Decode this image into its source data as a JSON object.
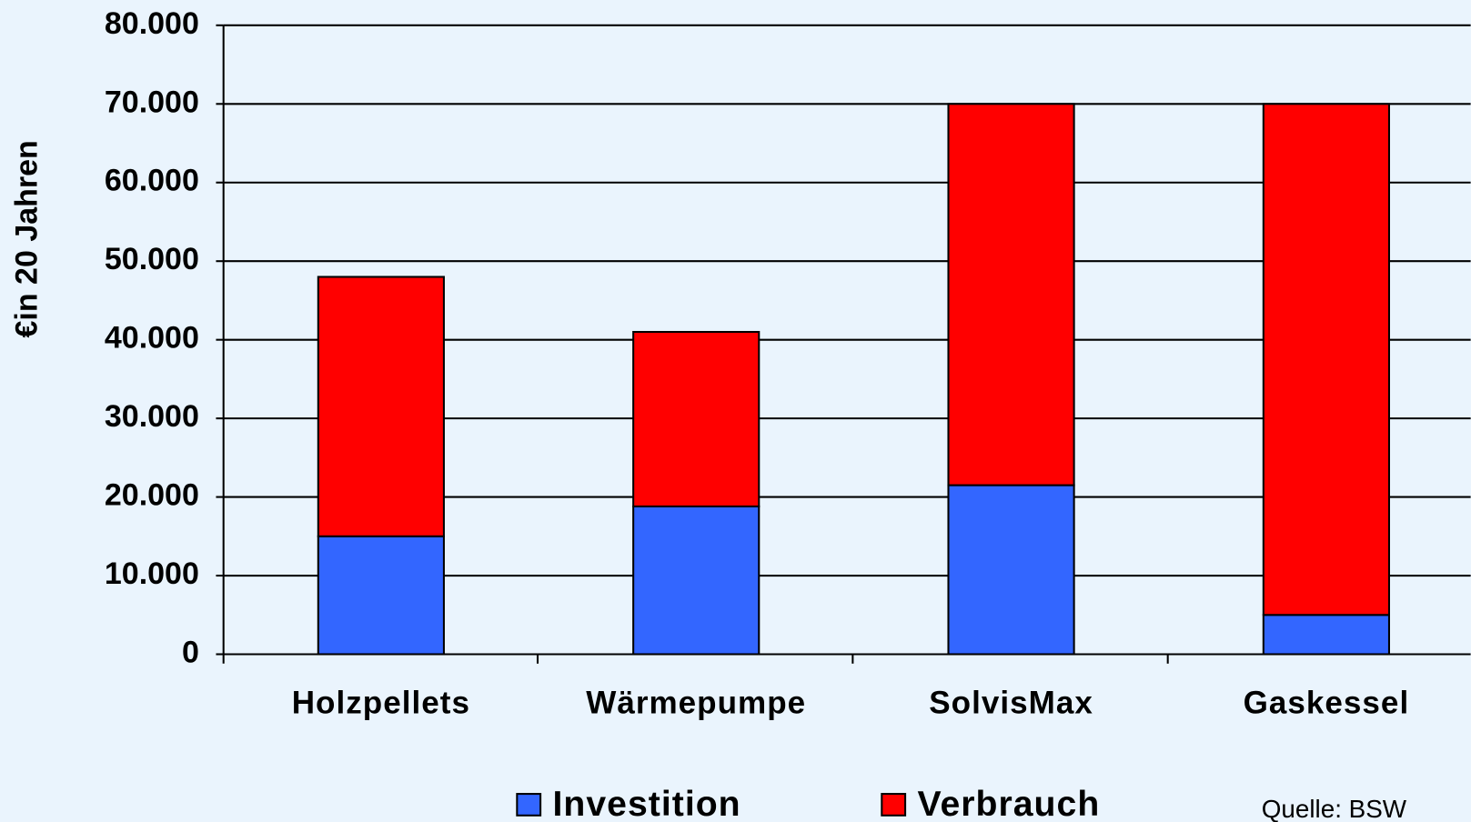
{
  "chart_data": {
    "type": "stacked_bar",
    "ylabel": "€in 20 Jahren",
    "source": "Quelle: BSW",
    "categories": [
      "Holzpellets",
      "Wärmepumpe",
      "SolvisMax",
      "Gaskessel"
    ],
    "series": [
      {
        "name": "Investition",
        "color": "#3366ff",
        "values": [
          15000,
          18800,
          21500,
          5000
        ]
      },
      {
        "name": "Verbrauch",
        "color": "#ff0000",
        "values": [
          33000,
          22200,
          48500,
          65000
        ]
      }
    ],
    "ylim": [
      0,
      80000
    ],
    "yticks": [
      0,
      {
        "value": 10000,
        "label": "10.000"
      },
      {
        "value": 20000,
        "label": "20.000"
      },
      {
        "value": 30000,
        "label": "30.000"
      },
      {
        "value": 40000,
        "label": "40.000"
      },
      {
        "value": 50000,
        "label": "50.000"
      },
      {
        "value": 60000,
        "label": "60.000"
      },
      {
        "value": 70000,
        "label": "70.000"
      },
      {
        "value": 80000,
        "label": "80.000"
      }
    ],
    "grid": true,
    "legend": "bottom"
  }
}
